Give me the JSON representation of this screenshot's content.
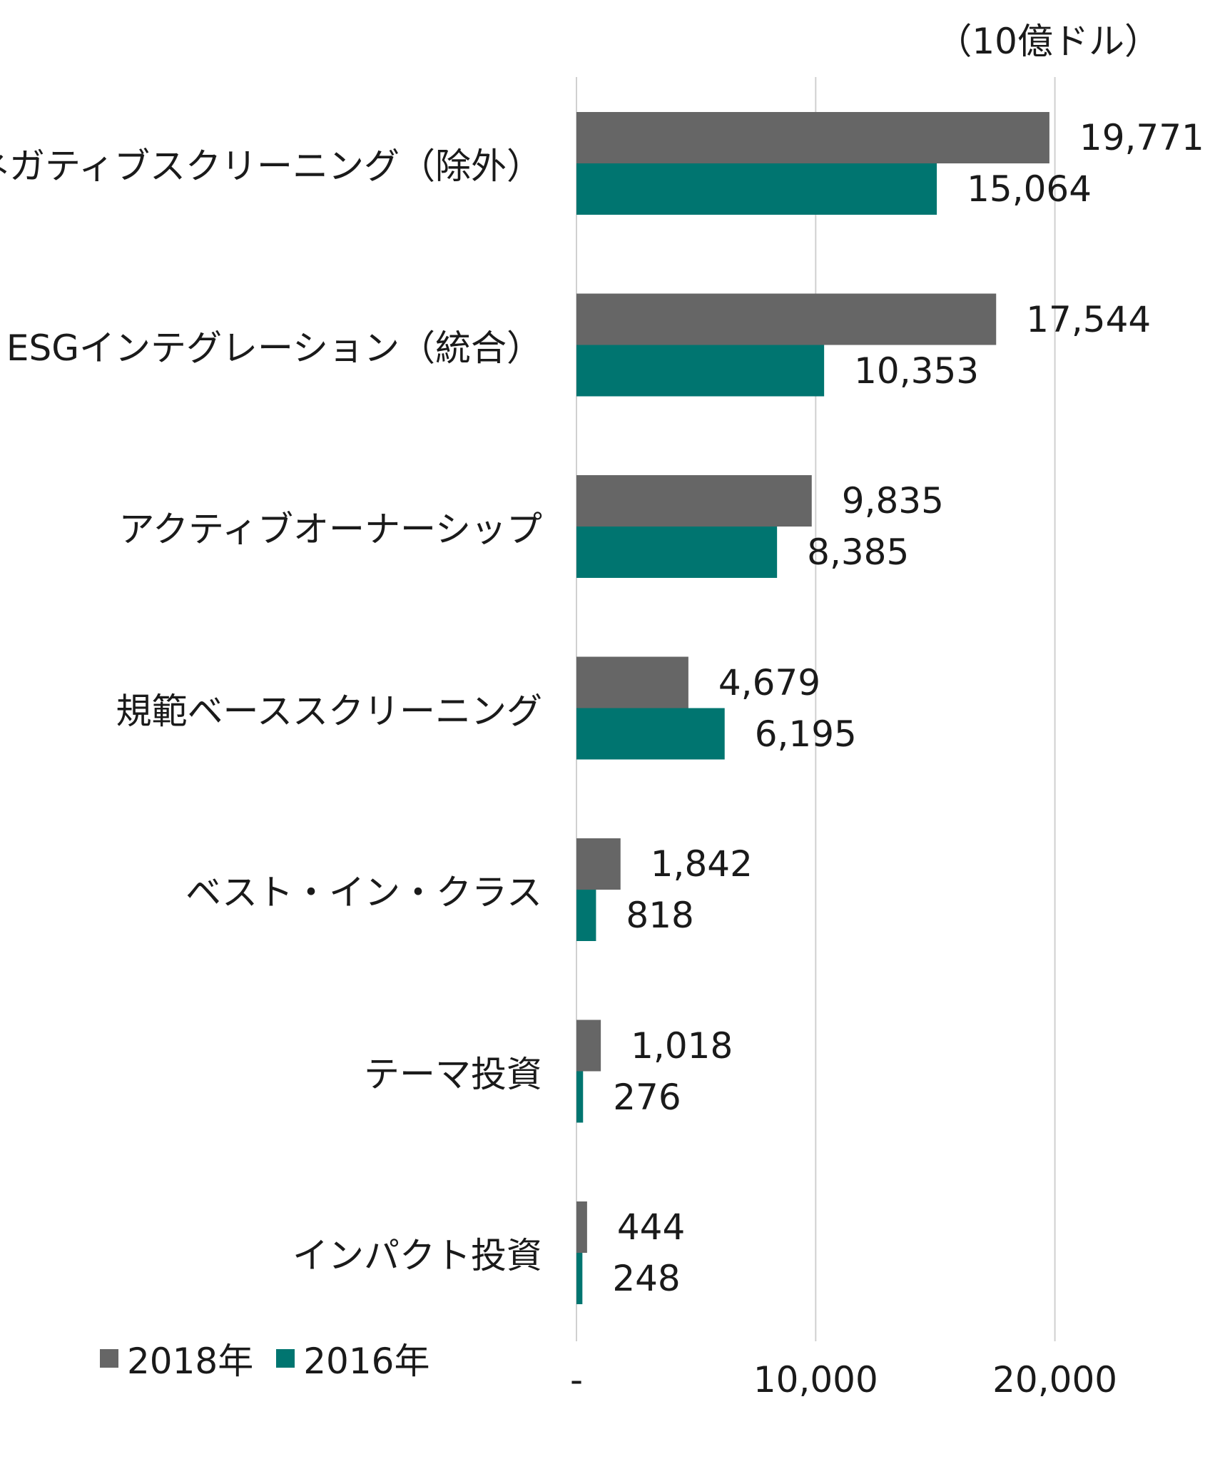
{
  "chart_data": {
    "type": "bar",
    "orientation": "horizontal",
    "unit_label": "（10億ドル）",
    "categories": [
      "ネガティブスクリーニング（除外）",
      "ESGインテグレーション（統合）",
      "アクティブオーナーシップ",
      "規範ベーススクリーニング",
      "ベスト・イン・クラス",
      "テーマ投資",
      "インパクト投資"
    ],
    "series": [
      {
        "name": "2018年",
        "color": "#666666",
        "values": [
          19771,
          17544,
          9835,
          4679,
          1842,
          1018,
          444
        ],
        "labels": [
          "19,771",
          "17,544",
          "9,835",
          "4,679",
          "1,842",
          "1,018",
          "444"
        ]
      },
      {
        "name": "2016年",
        "color": "#007570",
        "values": [
          15064,
          10353,
          8385,
          6195,
          818,
          276,
          248
        ],
        "labels": [
          "15,064",
          "10,353",
          "8,385",
          "6,195",
          "818",
          "276",
          "248"
        ]
      }
    ],
    "xlim": [
      0,
      26000
    ],
    "xticks": [
      0,
      10000,
      20000
    ],
    "xtick_labels": [
      "-",
      "10,000",
      "20,000"
    ],
    "grid": true,
    "legend_position": "bottom-left"
  }
}
